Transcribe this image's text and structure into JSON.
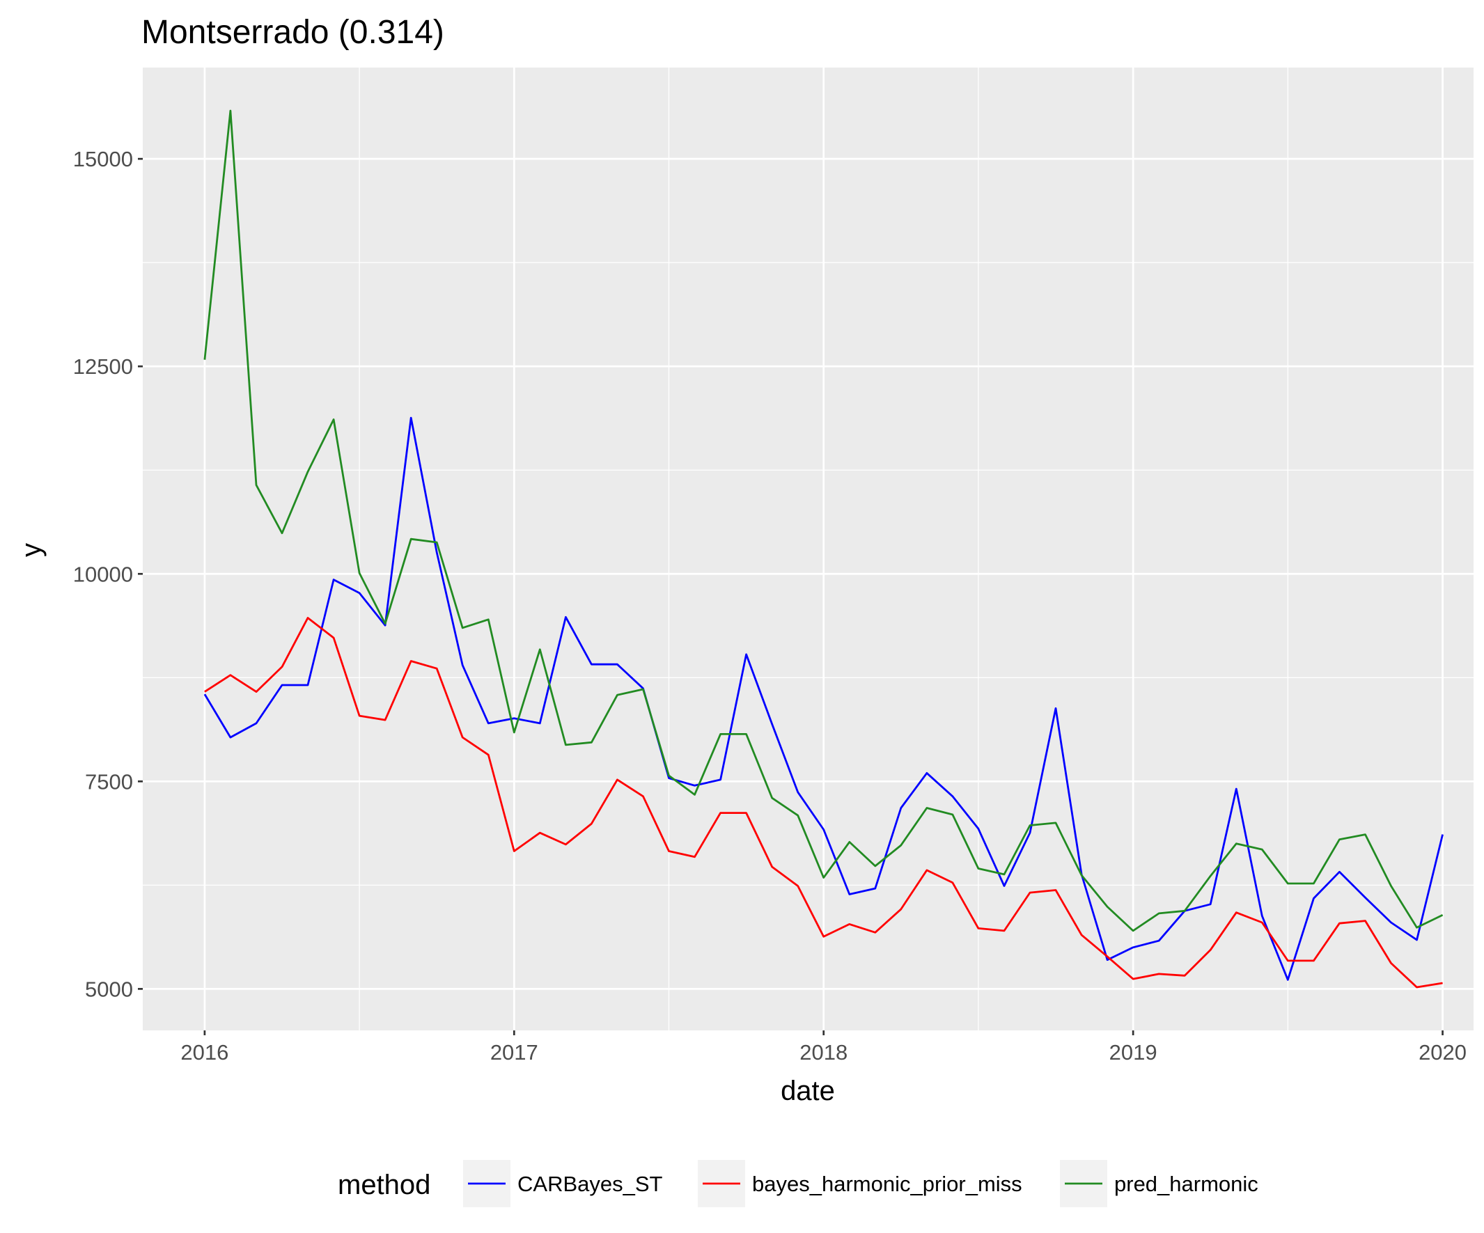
{
  "chart_data": {
    "type": "line",
    "title": "Montserrado (0.314)",
    "xlabel": "date",
    "ylabel": "y",
    "x_axis": {
      "ticks": [
        2016,
        2017,
        2018,
        2019,
        2020
      ],
      "tick_labels": [
        "2016",
        "2017",
        "2018",
        "2019",
        "2020"
      ],
      "range": [
        2015.8,
        2020.1
      ]
    },
    "y_axis": {
      "ticks": [
        5000,
        7500,
        10000,
        12500,
        15000
      ],
      "tick_labels": [
        "5000",
        "7500",
        "10000",
        "12500",
        "15000"
      ],
      "range": [
        4500,
        16100
      ]
    },
    "grid": true,
    "legend": {
      "title": "method",
      "position": "bottom"
    },
    "x": [
      "2016-01",
      "2016-02",
      "2016-03",
      "2016-04",
      "2016-05",
      "2016-06",
      "2016-07",
      "2016-08",
      "2016-09",
      "2016-10",
      "2016-11",
      "2016-12",
      "2017-01",
      "2017-02",
      "2017-03",
      "2017-04",
      "2017-05",
      "2017-06",
      "2017-07",
      "2017-08",
      "2017-09",
      "2017-10",
      "2017-11",
      "2017-12",
      "2018-01",
      "2018-02",
      "2018-03",
      "2018-04",
      "2018-05",
      "2018-06",
      "2018-07",
      "2018-08",
      "2018-09",
      "2018-10",
      "2018-11",
      "2018-12",
      "2019-01",
      "2019-02",
      "2019-03",
      "2019-04",
      "2019-05",
      "2019-06",
      "2019-07",
      "2019-08",
      "2019-09",
      "2019-10",
      "2019-11",
      "2019-12",
      "2020-01"
    ],
    "series": [
      {
        "name": "CARBayes_ST",
        "color": "#0000ff",
        "values": [
          8550,
          8030,
          8200,
          8660,
          8660,
          9930,
          9770,
          9380,
          11880,
          10260,
          8900,
          8200,
          8260,
          8200,
          9480,
          8910,
          8910,
          8620,
          7540,
          7450,
          7520,
          9030,
          8190,
          7370,
          6920,
          6140,
          6210,
          7180,
          7600,
          7320,
          6930,
          6240,
          6880,
          8380,
          6380,
          5350,
          5500,
          5580,
          5940,
          6020,
          7410,
          5880,
          5110,
          6090,
          6410,
          6100,
          5800,
          5590,
          6860
        ]
      },
      {
        "name": "bayes_harmonic_prior_miss",
        "color": "#ff0000",
        "values": [
          8580,
          8780,
          8580,
          8880,
          9470,
          9230,
          8290,
          8240,
          8950,
          8860,
          8030,
          7820,
          6660,
          6880,
          6740,
          6990,
          7520,
          7320,
          6660,
          6590,
          7120,
          7120,
          6470,
          6240,
          5630,
          5780,
          5680,
          5960,
          6430,
          6280,
          5730,
          5700,
          6160,
          6190,
          5650,
          5390,
          5120,
          5180,
          5160,
          5470,
          5920,
          5800,
          5340,
          5340,
          5790,
          5820,
          5310,
          5020,
          5070
        ]
      },
      {
        "name": "pred_harmonic",
        "color": "#228b22",
        "values": [
          12580,
          15580,
          11070,
          10490,
          11230,
          11860,
          10010,
          9400,
          10420,
          10380,
          9350,
          9450,
          8090,
          9090,
          7940,
          7970,
          8540,
          8610,
          7570,
          7340,
          8070,
          8070,
          7300,
          7090,
          6340,
          6770,
          6480,
          6730,
          7180,
          7100,
          6450,
          6380,
          6970,
          7000,
          6370,
          5990,
          5700,
          5910,
          5940,
          6360,
          6750,
          6680,
          6270,
          6270,
          6800,
          6860,
          6240,
          5740,
          5890
        ]
      }
    ]
  }
}
